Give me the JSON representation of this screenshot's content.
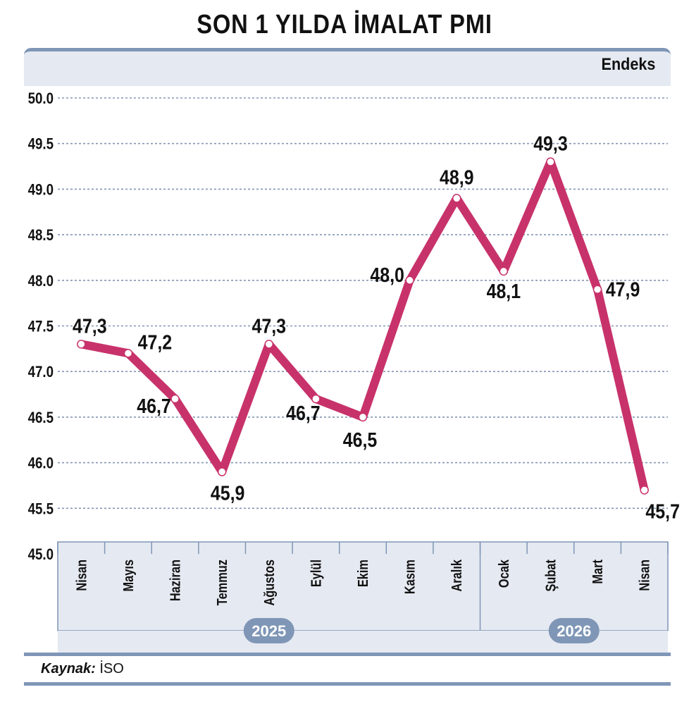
{
  "title": "SON 1 YILDA İMALAT PMI",
  "unit_label": "Endeks",
  "source": {
    "label": "Kaynak:",
    "value": "İSO"
  },
  "colors": {
    "line": "#c8326b",
    "frame": "#7f96b6",
    "panel": "#e5e9f1",
    "grid": "#8395b3"
  },
  "chart_data": {
    "type": "line",
    "title": "SON 1 YILDA İMALAT PMI",
    "ylabel": "Endeks",
    "xlabel": "",
    "ylim": [
      45.0,
      50.0
    ],
    "yticks": [
      "45.0",
      "45.5",
      "46.0",
      "46.5",
      "47.0",
      "47.5",
      "48.0",
      "48.5",
      "49.0",
      "49.5",
      "50.0"
    ],
    "grid": true,
    "categories": [
      "Nisan",
      "Mayıs",
      "Haziran",
      "Temmuz",
      "Ağustos",
      "Eylül",
      "Ekim",
      "Kasım",
      "Aralık",
      "Ocak",
      "Şubat",
      "Mart",
      "Nisan"
    ],
    "year_groups": [
      {
        "label": "2025",
        "from": 0,
        "to": 8
      },
      {
        "label": "2026",
        "from": 9,
        "to": 12
      }
    ],
    "series": [
      {
        "values": [
          47.3,
          47.2,
          46.7,
          45.9,
          47.3,
          46.7,
          46.5,
          48.0,
          48.9,
          48.1,
          49.3,
          47.9,
          45.7
        ],
        "data_labels": [
          "47,3",
          "47,2",
          "46,7",
          "45,9",
          "47,3",
          "46,7",
          "46,5",
          "48,0",
          "48,9",
          "48,1",
          "49,3",
          "47,9",
          "45,7"
        ]
      }
    ]
  }
}
